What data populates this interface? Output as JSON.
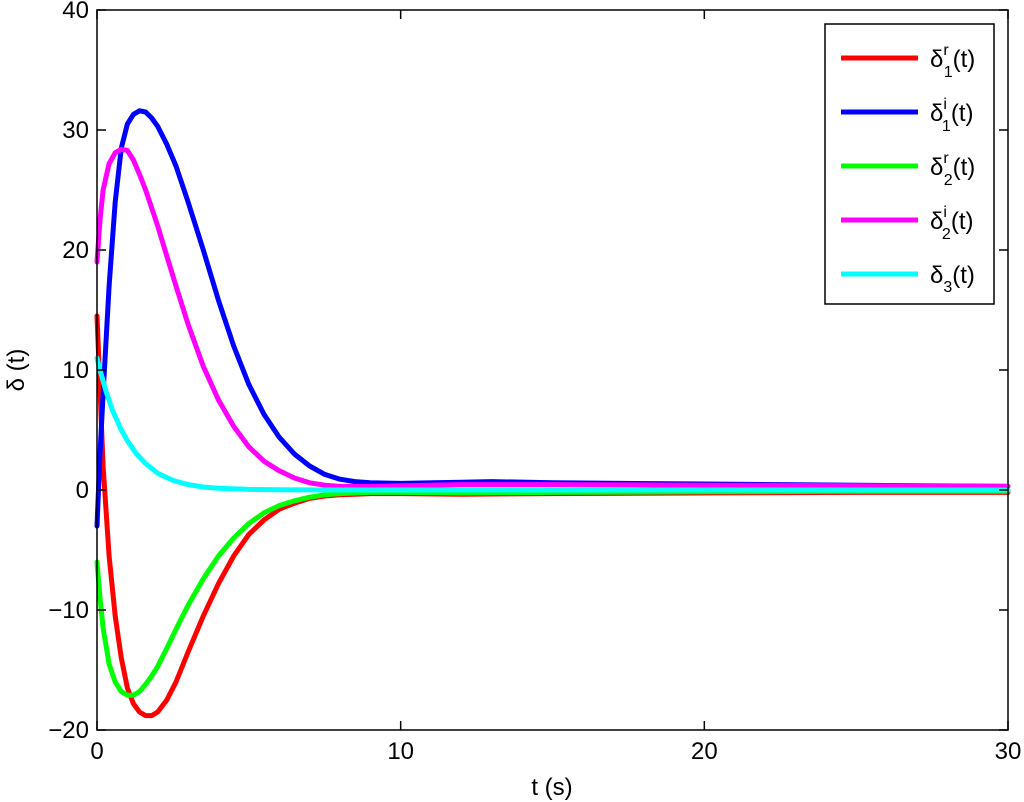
{
  "chart_data": {
    "type": "line",
    "title": "",
    "xlabel": "t (s)",
    "ylabel": "δ (t)",
    "xlim": [
      0,
      30
    ],
    "ylim": [
      -20,
      40
    ],
    "xticks": [
      0,
      10,
      20,
      30
    ],
    "yticks": [
      -20,
      -10,
      0,
      10,
      20,
      30,
      40
    ],
    "xtick_labels": [
      "0",
      "10",
      "20",
      "30"
    ],
    "ytick_labels": [
      "−20",
      "−10",
      "0",
      "10",
      "20",
      "30",
      "40"
    ],
    "grid": false,
    "legend_position": "top-right",
    "series": [
      {
        "name": "δ1r(t)",
        "base": "δ",
        "sup": "r",
        "sub": "1",
        "arg": "(t)",
        "color": "#ff0000",
        "x": [
          0,
          0.2,
          0.4,
          0.6,
          0.8,
          1.0,
          1.2,
          1.4,
          1.6,
          1.8,
          2.0,
          2.3,
          2.6,
          3.0,
          3.5,
          4.0,
          4.5,
          5.0,
          5.5,
          6.0,
          6.5,
          7.0,
          7.5,
          8.0,
          8.5,
          9.0,
          10,
          12,
          15,
          20,
          25,
          30
        ],
        "y": [
          14.5,
          2.0,
          -5.5,
          -10.5,
          -14.0,
          -16.5,
          -17.8,
          -18.5,
          -18.8,
          -18.8,
          -18.5,
          -17.5,
          -16.0,
          -13.5,
          -10.5,
          -7.8,
          -5.5,
          -3.7,
          -2.5,
          -1.6,
          -1.1,
          -0.7,
          -0.5,
          -0.4,
          -0.35,
          -0.3,
          -0.3,
          -0.35,
          -0.3,
          -0.25,
          -0.2,
          -0.2
        ]
      },
      {
        "name": "δ1i(t)",
        "base": "δ",
        "sup": "i",
        "sub": "1",
        "arg": "(t)",
        "color": "#0000ff",
        "x": [
          0,
          0.1,
          0.2,
          0.4,
          0.6,
          0.8,
          1.0,
          1.2,
          1.4,
          1.6,
          1.8,
          2.0,
          2.3,
          2.6,
          3.0,
          3.5,
          4.0,
          4.5,
          5.0,
          5.5,
          6.0,
          6.5,
          7.0,
          7.5,
          8.0,
          8.5,
          9.0,
          10,
          12,
          13,
          15,
          20,
          25,
          30
        ],
        "y": [
          -3.0,
          3.0,
          8.0,
          17.0,
          24.0,
          28.5,
          30.5,
          31.3,
          31.6,
          31.5,
          31.0,
          30.3,
          28.8,
          27.0,
          24.0,
          20.0,
          15.8,
          12.0,
          8.8,
          6.3,
          4.4,
          3.0,
          2.0,
          1.3,
          0.9,
          0.7,
          0.6,
          0.55,
          0.65,
          0.7,
          0.6,
          0.5,
          0.4,
          0.3
        ]
      },
      {
        "name": "δ2r(t)",
        "base": "δ",
        "sup": "r",
        "sub": "2",
        "arg": "(t)",
        "color": "#00ff00",
        "x": [
          0,
          0.1,
          0.2,
          0.4,
          0.6,
          0.8,
          1.0,
          1.2,
          1.4,
          1.6,
          1.8,
          2.0,
          2.3,
          2.6,
          3.0,
          3.5,
          4.0,
          4.5,
          5.0,
          5.5,
          6.0,
          6.5,
          7.0,
          7.5,
          8.0,
          9.0,
          10,
          12,
          15,
          20,
          25,
          30
        ],
        "y": [
          -6.0,
          -9.0,
          -11.5,
          -14.5,
          -16.0,
          -16.8,
          -17.1,
          -17.1,
          -16.8,
          -16.2,
          -15.5,
          -14.7,
          -13.2,
          -11.6,
          -9.6,
          -7.4,
          -5.5,
          -4.0,
          -2.8,
          -1.9,
          -1.3,
          -0.9,
          -0.6,
          -0.4,
          -0.3,
          -0.2,
          -0.2,
          -0.25,
          -0.2,
          -0.15,
          -0.1,
          -0.1
        ]
      },
      {
        "name": "δ2i(t)",
        "base": "δ",
        "sup": "i",
        "sub": "2",
        "arg": "(t)",
        "color": "#ff00ff",
        "x": [
          0,
          0.1,
          0.2,
          0.4,
          0.6,
          0.8,
          1.0,
          1.2,
          1.4,
          1.6,
          1.8,
          2.0,
          2.3,
          2.6,
          3.0,
          3.5,
          4.0,
          4.5,
          5.0,
          5.5,
          6.0,
          6.5,
          7.0,
          7.5,
          8.0,
          9.0,
          10,
          12,
          15,
          20,
          25,
          30
        ],
        "y": [
          19.0,
          22.5,
          25.0,
          27.2,
          28.1,
          28.4,
          28.3,
          27.5,
          26.3,
          25.0,
          23.5,
          22.0,
          19.5,
          17.0,
          13.8,
          10.3,
          7.5,
          5.3,
          3.6,
          2.4,
          1.6,
          1.0,
          0.6,
          0.4,
          0.3,
          0.3,
          0.35,
          0.45,
          0.45,
          0.4,
          0.35,
          0.3
        ]
      },
      {
        "name": "δ3(t)",
        "base": "δ",
        "sup": "",
        "sub": "3",
        "arg": "(t)",
        "color": "#00ffff",
        "x": [
          0,
          0.1,
          0.3,
          0.5,
          0.8,
          1.0,
          1.3,
          1.6,
          2.0,
          2.5,
          3.0,
          3.5,
          4.0,
          5.0,
          6.0,
          8.0,
          10,
          15,
          20,
          30
        ],
        "y": [
          11.0,
          10.0,
          8.2,
          6.7,
          5.0,
          4.1,
          3.0,
          2.2,
          1.4,
          0.8,
          0.45,
          0.25,
          0.15,
          0.05,
          0.02,
          0.0,
          0.0,
          0.0,
          0.0,
          0.0
        ]
      }
    ]
  }
}
